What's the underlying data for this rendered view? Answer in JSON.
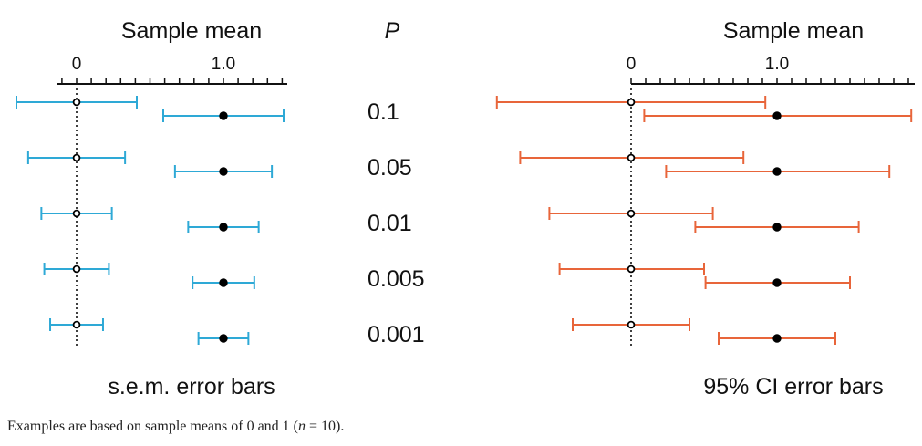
{
  "chart_data": [
    {
      "type": "error-bar",
      "title": "Sample mean",
      "caption": "s.e.m. error bars",
      "x_ticks": [
        {
          "value": 0,
          "label": "0"
        },
        {
          "value": 1,
          "label": "1.0"
        }
      ],
      "xlim": [
        -0.41,
        1.43
      ],
      "color": "#2ea9d6",
      "groups": [
        {
          "p": "0.1",
          "bars": [
            {
              "mean": 0,
              "low": -0.41,
              "high": 0.41,
              "filled": false
            },
            {
              "mean": 1,
              "low": 0.59,
              "high": 1.41,
              "filled": true
            }
          ]
        },
        {
          "p": "0.05",
          "bars": [
            {
              "mean": 0,
              "low": -0.33,
              "high": 0.33,
              "filled": false
            },
            {
              "mean": 1,
              "low": 0.67,
              "high": 1.33,
              "filled": true
            }
          ]
        },
        {
          "p": "0.01",
          "bars": [
            {
              "mean": 0,
              "low": -0.24,
              "high": 0.24,
              "filled": false
            },
            {
              "mean": 1,
              "low": 0.76,
              "high": 1.24,
              "filled": true
            }
          ]
        },
        {
          "p": "0.005",
          "bars": [
            {
              "mean": 0,
              "low": -0.22,
              "high": 0.22,
              "filled": false
            },
            {
              "mean": 1,
              "low": 0.79,
              "high": 1.21,
              "filled": true
            }
          ]
        },
        {
          "p": "0.001",
          "bars": [
            {
              "mean": 0,
              "low": -0.18,
              "high": 0.18,
              "filled": false
            },
            {
              "mean": 1,
              "low": 0.83,
              "high": 1.17,
              "filled": true
            }
          ]
        }
      ]
    },
    {
      "type": "error-bar",
      "title": "Sample mean",
      "caption": "95% CI error bars",
      "x_ticks": [
        {
          "value": 0,
          "label": "0"
        },
        {
          "value": 1,
          "label": "1.0"
        }
      ],
      "xlim": [
        -0.92,
        1.95
      ],
      "color": "#e8653a",
      "groups": [
        {
          "p": "0.1",
          "bars": [
            {
              "mean": 0,
              "low": -0.92,
              "high": 0.92,
              "filled": false
            },
            {
              "mean": 1,
              "low": 0.09,
              "high": 1.92,
              "filled": true
            }
          ]
        },
        {
          "p": "0.05",
          "bars": [
            {
              "mean": 0,
              "low": -0.76,
              "high": 0.77,
              "filled": false
            },
            {
              "mean": 1,
              "low": 0.24,
              "high": 1.77,
              "filled": true
            }
          ]
        },
        {
          "p": "0.01",
          "bars": [
            {
              "mean": 0,
              "low": -0.56,
              "high": 0.56,
              "filled": false
            },
            {
              "mean": 1,
              "low": 0.44,
              "high": 1.56,
              "filled": true
            }
          ]
        },
        {
          "p": "0.005",
          "bars": [
            {
              "mean": 0,
              "low": -0.49,
              "high": 0.5,
              "filled": false
            },
            {
              "mean": 1,
              "low": 0.51,
              "high": 1.5,
              "filled": true
            }
          ]
        },
        {
          "p": "0.001",
          "bars": [
            {
              "mean": 0,
              "low": -0.4,
              "high": 0.4,
              "filled": false
            },
            {
              "mean": 1,
              "low": 0.6,
              "high": 1.4,
              "filled": true
            }
          ]
        }
      ]
    }
  ],
  "p_header": "P",
  "p_values": [
    "0.1",
    "0.05",
    "0.01",
    "0.005",
    "0.001"
  ],
  "caption": {
    "before_n": "Examples are based on sample means of 0 and 1 (",
    "n_symbol": "n",
    "after_n": " = 10)."
  }
}
